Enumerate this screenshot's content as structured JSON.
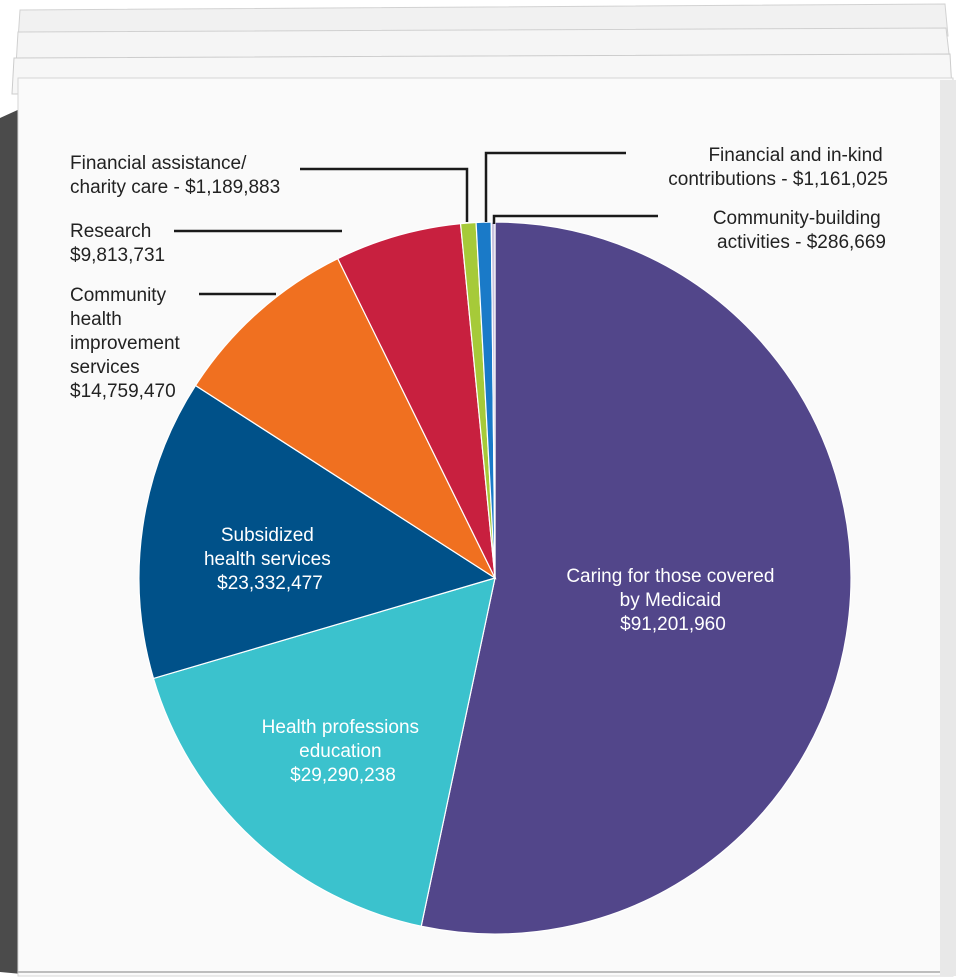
{
  "chart_data": {
    "type": "pie",
    "start_angle_deg": 0,
    "direction": "clockwise",
    "slices": [
      {
        "name_lines": [
          "Caring for those covered",
          "by Medicaid"
        ],
        "value_label": "$91,201,960",
        "value": 91201960,
        "color": "#52468a",
        "label_position": "inside"
      },
      {
        "name_lines": [
          "Health professions",
          "education"
        ],
        "value_label": "$29,290,238",
        "value": 29290238,
        "color": "#3bc2cd",
        "label_position": "inside"
      },
      {
        "name_lines": [
          "Subsidized",
          "health services"
        ],
        "value_label": "$23,332,477",
        "value": 23332477,
        "color": "#005189",
        "label_position": "inside"
      },
      {
        "name_lines": [
          "Community",
          "health",
          "improvement",
          "services"
        ],
        "value_label": "$14,759,470",
        "value": 14759470,
        "color": "#f07020",
        "label_position": "outside"
      },
      {
        "name_lines": [
          "Research"
        ],
        "value_label": "$9,813,731",
        "value": 9813731,
        "color": "#c8203f",
        "label_position": "outside"
      },
      {
        "name_lines": [
          "Financial assistance/",
          "charity care - $1,189,883"
        ],
        "value_label": "",
        "value": 1189883,
        "color": "#a6ca39",
        "label_position": "outside"
      },
      {
        "name_lines": [
          "Financial and in-kind",
          "contributions - $1,161,025"
        ],
        "value_label": "",
        "value": 1161025,
        "color": "#1a7ac8",
        "label_position": "outside"
      },
      {
        "name_lines": [
          "Community-building",
          "activities - $286,669"
        ],
        "value_label": "",
        "value": 286669,
        "color": "#c9c3de",
        "label_position": "outside"
      }
    ]
  }
}
